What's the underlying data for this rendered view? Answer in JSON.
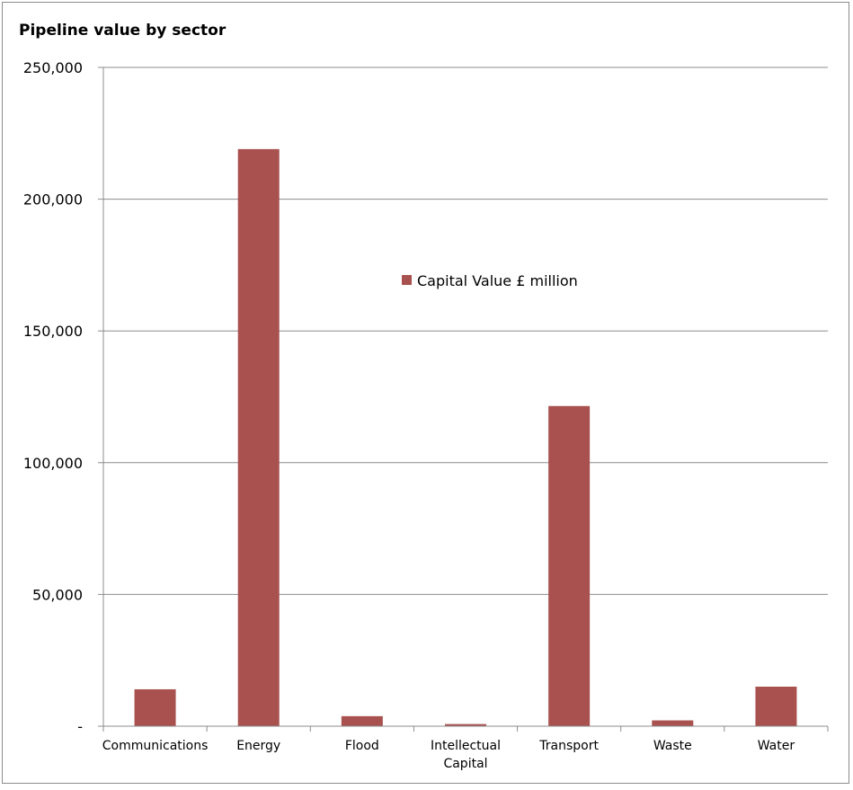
{
  "chart_data": {
    "type": "bar",
    "title": "Pipeline value by sector",
    "categories": [
      "Communications",
      "Energy",
      "Flood",
      "Intellectual Capital",
      "Transport",
      "Waste",
      "Water"
    ],
    "category_lines": [
      [
        "Communications"
      ],
      [
        "Energy"
      ],
      [
        "Flood"
      ],
      [
        "Intellectual",
        "Capital"
      ],
      [
        "Transport"
      ],
      [
        "Waste"
      ],
      [
        "Water"
      ]
    ],
    "series": [
      {
        "name": "Capital Value £ million",
        "values": [
          14000,
          219000,
          3800,
          800,
          121500,
          2200,
          15000
        ]
      }
    ],
    "ylim": [
      0,
      250000
    ],
    "yticks": [
      0,
      50000,
      100000,
      150000,
      200000,
      250000
    ],
    "ytick_labels": [
      "-",
      "50,000",
      "100,000",
      "150,000",
      "200,000",
      "250,000"
    ],
    "grid": true,
    "legend_position": "inside-center-right",
    "colors": {
      "bar": "#A8514F",
      "grid": "#8c8c8c",
      "axis": "#8c8c8c"
    }
  }
}
